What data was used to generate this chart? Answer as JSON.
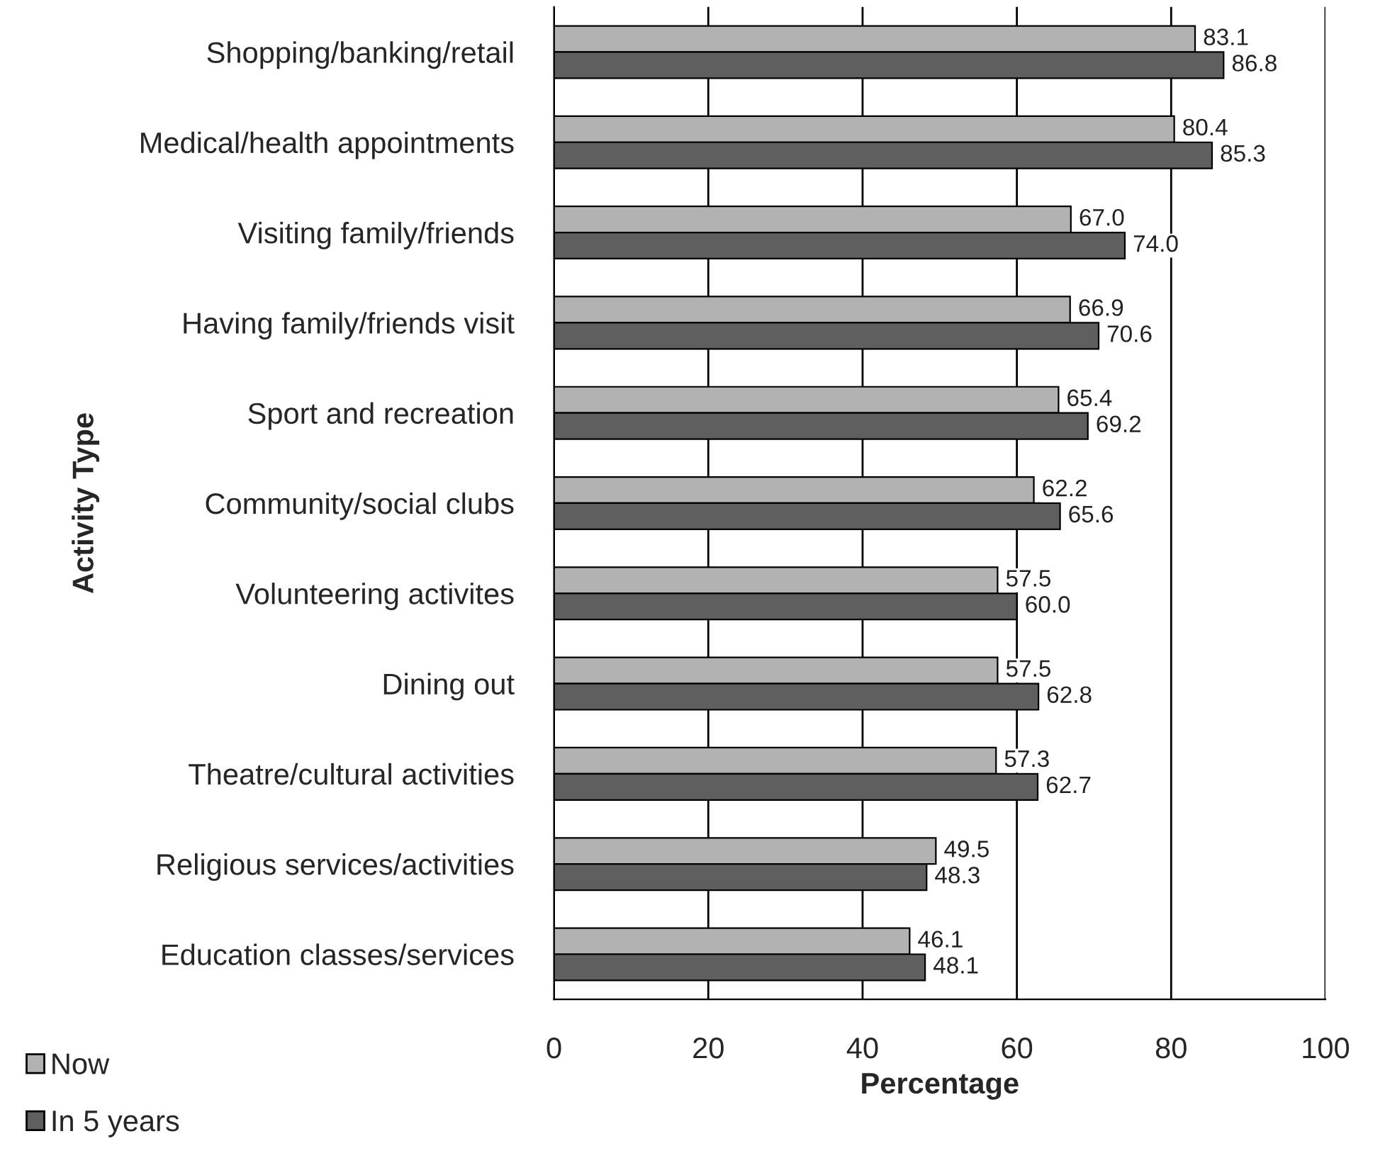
{
  "chart_data": {
    "type": "bar",
    "orientation": "horizontal",
    "xlabel": "Percentage",
    "ylabel": "Activity Type",
    "categories": [
      "Shopping/banking/retail",
      "Medical/health appointments",
      "Visiting family/friends",
      "Having family/friends visit",
      "Sport and recreation",
      "Community/social clubs",
      "Volunteering activites",
      "Dining out",
      "Theatre/cultural activities",
      "Religious services/activities",
      "Education classes/services"
    ],
    "series": [
      {
        "name": "Now",
        "color": "#b2b2b2",
        "values": [
          83.1,
          80.4,
          67.0,
          66.9,
          65.4,
          62.2,
          57.5,
          57.5,
          57.3,
          49.5,
          46.1
        ],
        "value_labels": [
          "83.1",
          "80.4",
          "67.0",
          "66.9",
          "65.4",
          "62.2",
          "57.5",
          "57.5",
          "57.3",
          "49.5",
          "46.1"
        ]
      },
      {
        "name": "In 5 years",
        "color": "#5f5f5f",
        "values": [
          86.8,
          85.3,
          74.0,
          70.6,
          69.2,
          65.6,
          60.0,
          62.8,
          62.7,
          48.3,
          48.1
        ],
        "value_labels": [
          "86.8",
          "85.3",
          "74.0",
          "70.6",
          "69.2",
          "65.6",
          "60.0",
          "62.8",
          "62.7",
          "48.3",
          "48.1"
        ]
      }
    ],
    "xlim": [
      0,
      100
    ],
    "xticks": [
      0,
      20,
      40,
      60,
      80,
      100
    ],
    "grid": "x",
    "legend": "bottom left"
  }
}
